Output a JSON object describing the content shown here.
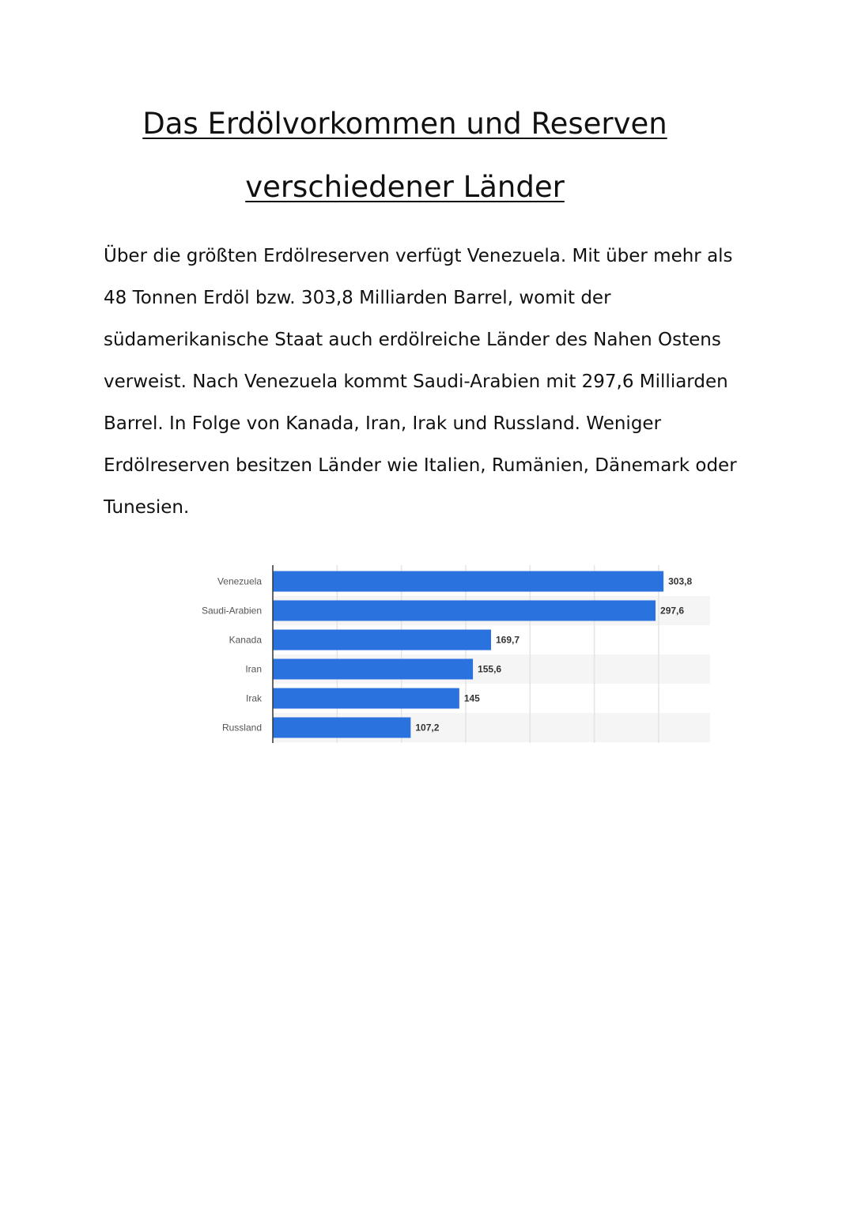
{
  "document": {
    "title_line1": "Das Erdölvorkommen und Reserven",
    "title_line2": "verschiedener Länder",
    "paragraph_lines": [
      "Über die größten Erdölreserven verfügt Venezuela. Mit über mehr als",
      "48 Tonnen Erdöl bzw. 303,8 Milliarden Barrel, womit der",
      "südamerikanische Staat auch erdölreiche Länder des Nahen Ostens",
      "verweist. Nach Venezuela kommt Saudi-Arabien mit 297,6 Milliarden",
      "Barrel. In Folge von Kanada, Iran, Irak und Russland. Weniger",
      "Erdölreserven besitzen Länder wie Italien, Rumänien, Dänemark oder",
      "Tunesien."
    ]
  },
  "colors": {
    "bar": "#2a72de",
    "grid": "#e4e4e4",
    "row_alt": "#f5f5f5",
    "axis": "#333333",
    "label": "#555555",
    "value_label": "#333333"
  },
  "chart_data": {
    "type": "bar",
    "orientation": "horizontal",
    "categories": [
      "Venezuela",
      "Saudi-Arabien",
      "Kanada",
      "Iran",
      "Irak",
      "Russland"
    ],
    "values": [
      303.8,
      297.6,
      169.7,
      155.6,
      145,
      107.2
    ],
    "value_labels": [
      "303,8",
      "297,6",
      "169,7",
      "155,6",
      "145",
      "107,2"
    ],
    "xlim": [
      0,
      340
    ],
    "grid": true,
    "title": "",
    "xlabel": "",
    "ylabel": ""
  }
}
